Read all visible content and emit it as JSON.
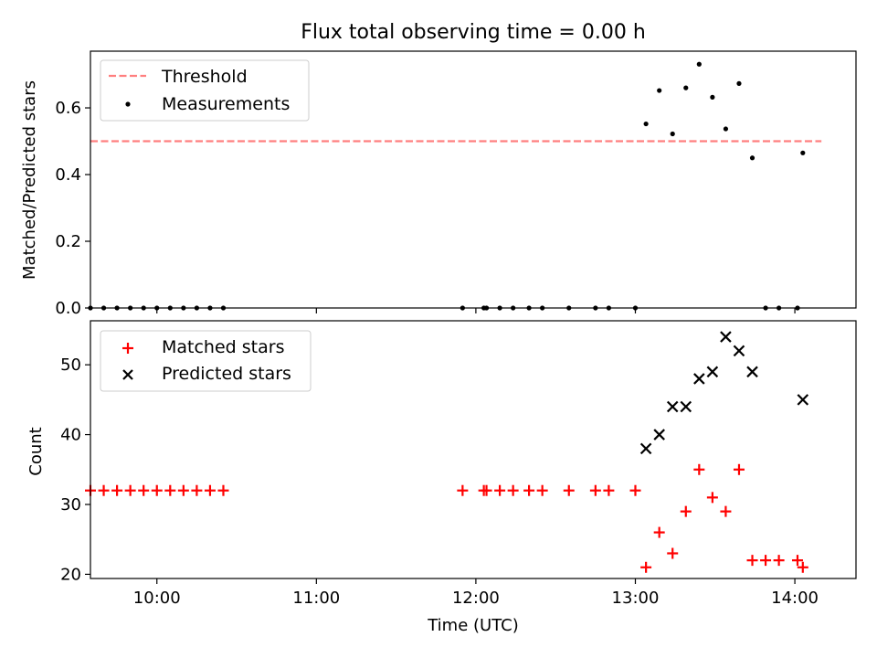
{
  "chart_data": [
    {
      "type": "scatter",
      "title": "Flux total observing time = 0.00 h",
      "xlabel": "",
      "ylabel": "Matched/Predicted stars",
      "xlim": [
        "09:35",
        "14:23"
      ],
      "ylim": [
        0,
        0.77
      ],
      "yticks": [
        0.0,
        0.2,
        0.4,
        0.6
      ],
      "ytick_labels": [
        "0.0",
        "0.2",
        "0.4",
        "0.6"
      ],
      "xticks": [
        "10:00",
        "11:00",
        "12:00",
        "13:00",
        "14:00"
      ],
      "show_xtick_labels": false,
      "grid": false,
      "legend_position": "upper-left",
      "series": [
        {
          "name": "Threshold",
          "kind": "line",
          "color": "#ff7f7f",
          "dash": true,
          "x": [
            "09:35",
            "14:10"
          ],
          "y": [
            0.5,
            0.5
          ]
        },
        {
          "name": "Measurements",
          "kind": "dot",
          "color": "#000000",
          "x": [
            "09:35",
            "09:40",
            "09:45",
            "09:50",
            "09:55",
            "10:00",
            "10:05",
            "10:10",
            "10:15",
            "10:20",
            "10:25",
            "11:55",
            "12:03",
            "12:04",
            "12:09",
            "12:14",
            "12:20",
            "12:25",
            "12:35",
            "12:45",
            "12:50",
            "13:00",
            "13:04",
            "13:09",
            "13:14",
            "13:19",
            "13:24",
            "13:29",
            "13:34",
            "13:39",
            "13:44",
            "13:49",
            "13:54",
            "14:01",
            "14:03"
          ],
          "y": [
            0,
            0,
            0,
            0,
            0,
            0,
            0,
            0,
            0,
            0,
            0,
            0,
            0,
            0,
            0,
            0,
            0,
            0,
            0,
            0,
            0,
            0,
            0.552,
            0.652,
            0.522,
            0.66,
            0.731,
            0.632,
            0.537,
            0.673,
            0.45,
            0,
            0,
            0,
            0.465
          ]
        }
      ]
    },
    {
      "type": "scatter",
      "title": "",
      "xlabel": "Time (UTC)",
      "ylabel": "Count",
      "xlim": [
        "09:35",
        "14:23"
      ],
      "ylim": [
        19.4,
        56.3
      ],
      "yticks": [
        20,
        30,
        40,
        50
      ],
      "ytick_labels": [
        "20",
        "30",
        "40",
        "50"
      ],
      "xticks": [
        "10:00",
        "11:00",
        "12:00",
        "13:00",
        "14:00"
      ],
      "xtick_labels": [
        "10:00",
        "11:00",
        "12:00",
        "13:00",
        "14:00"
      ],
      "grid": false,
      "legend_position": "upper-left",
      "series": [
        {
          "name": "Matched stars",
          "kind": "plus",
          "color": "#ff0000",
          "x": [
            "09:35",
            "09:40",
            "09:45",
            "09:50",
            "09:55",
            "10:00",
            "10:05",
            "10:10",
            "10:15",
            "10:20",
            "10:25",
            "11:55",
            "12:03",
            "12:04",
            "12:09",
            "12:14",
            "12:20",
            "12:25",
            "12:35",
            "12:45",
            "12:50",
            "13:00",
            "13:04",
            "13:09",
            "13:14",
            "13:19",
            "13:24",
            "13:29",
            "13:34",
            "13:39",
            "13:44",
            "13:49",
            "13:54",
            "14:01",
            "14:03"
          ],
          "y": [
            32,
            32,
            32,
            32,
            32,
            32,
            32,
            32,
            32,
            32,
            32,
            32,
            32,
            32,
            32,
            32,
            32,
            32,
            32,
            32,
            32,
            32,
            21,
            26,
            23,
            29,
            35,
            31,
            29,
            35,
            22,
            22,
            22,
            22,
            21
          ]
        },
        {
          "name": "Predicted stars",
          "kind": "x",
          "color": "#000000",
          "x": [
            "13:04",
            "13:09",
            "13:14",
            "13:19",
            "13:24",
            "13:29",
            "13:34",
            "13:39",
            "13:44",
            "14:03"
          ],
          "y": [
            38,
            40,
            44,
            44,
            48,
            49,
            54,
            52,
            49,
            45
          ]
        }
      ]
    }
  ]
}
